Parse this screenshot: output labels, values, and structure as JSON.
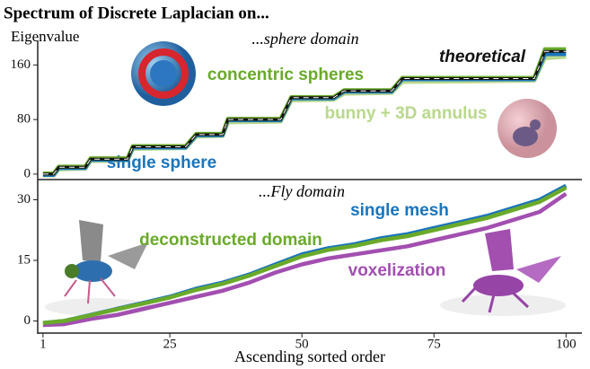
{
  "title": "Spectrum of Discrete Laplacian on...",
  "chart_data": [
    {
      "type": "line",
      "title": "...sphere domain",
      "y_label": "Eigenvalue",
      "xlim": [
        0,
        103
      ],
      "ylim": [
        -8,
        196
      ],
      "yticks": [
        0,
        80,
        160
      ],
      "x": [
        1,
        3,
        4,
        9,
        10,
        17,
        18,
        28,
        30,
        35,
        36,
        46,
        48,
        56,
        58,
        67,
        69,
        94,
        96,
        100
      ],
      "series": [
        {
          "name": "bunny + 3D annulus",
          "color": "#b9d88c",
          "values": [
            -2,
            -2,
            7,
            8,
            19,
            20,
            37,
            38,
            55,
            56,
            76,
            77,
            108,
            109,
            118,
            119,
            135,
            137,
            170,
            172
          ]
        },
        {
          "name": "single sphere",
          "color": "#1a75bb",
          "values": [
            -1,
            -1,
            9,
            9,
            21,
            21,
            39,
            39,
            57,
            57,
            79,
            79,
            111,
            111,
            121,
            121,
            139,
            139,
            176,
            176
          ]
        },
        {
          "name": "concentric spheres",
          "color": "#6aaa2a",
          "values": [
            1,
            1,
            11,
            11,
            23,
            23,
            41,
            41,
            59,
            59,
            81,
            81,
            113,
            113,
            123,
            123,
            141,
            141,
            183,
            183
          ]
        },
        {
          "name": "theoretical",
          "color": "#111111",
          "linestyle": "dashed",
          "values": [
            0,
            0,
            10,
            10,
            22,
            22,
            40,
            40,
            58,
            58,
            80,
            80,
            112,
            112,
            122,
            122,
            140,
            140,
            180,
            180
          ]
        }
      ]
    },
    {
      "type": "line",
      "title": "...Fly domain",
      "x_label": "Ascending sorted order",
      "xlim": [
        0,
        103
      ],
      "ylim": [
        -3,
        34
      ],
      "yticks": [
        0,
        15,
        30
      ],
      "xticks": [
        1,
        25,
        50,
        75,
        100
      ],
      "x": [
        1,
        5,
        10,
        15,
        20,
        25,
        30,
        35,
        40,
        45,
        50,
        55,
        60,
        65,
        70,
        75,
        80,
        85,
        90,
        95,
        100
      ],
      "series": [
        {
          "name": "voxelization",
          "color": "#a24fb0",
          "values": [
            -1,
            -0.8,
            0.5,
            1.5,
            3,
            4.5,
            6,
            7.5,
            9.5,
            12,
            14,
            15.5,
            16.5,
            17.5,
            18.5,
            20,
            21.5,
            23,
            25,
            27,
            31.5
          ]
        },
        {
          "name": "single mesh",
          "color": "#1a75bb",
          "values": [
            -0.5,
            0,
            1.5,
            3,
            4.5,
            6,
            8,
            9.5,
            11.5,
            14,
            16.5,
            18,
            19,
            20.5,
            21.5,
            23,
            24.5,
            26,
            28,
            30,
            33.5
          ]
        },
        {
          "name": "deconstructed domain",
          "color": "#6aaa2a",
          "values": [
            -0.5,
            0,
            1.4,
            2.9,
            4.3,
            5.8,
            7.7,
            9.2,
            11.2,
            13.6,
            16,
            17.6,
            18.6,
            20,
            21,
            22.5,
            24,
            25.5,
            27.5,
            29.5,
            33
          ]
        }
      ]
    }
  ]
}
